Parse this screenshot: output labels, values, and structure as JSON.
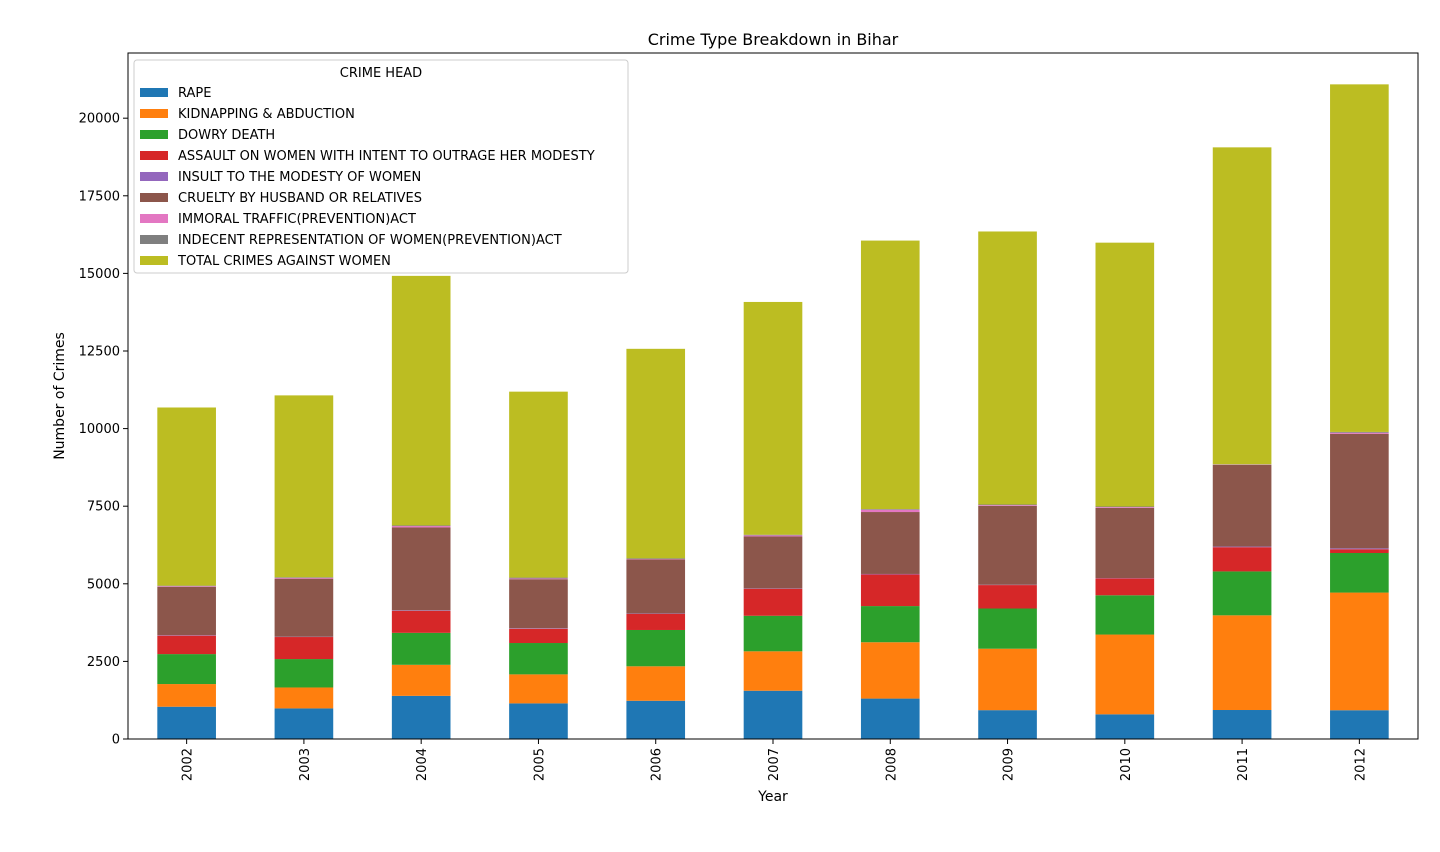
{
  "chart_data": {
    "type": "bar",
    "stacked": true,
    "title": "Crime Type Breakdown in Bihar",
    "xlabel": "Year",
    "ylabel": "Number of Crimes",
    "ylim": [
      0,
      22100
    ],
    "yticks": [
      0,
      2500,
      5000,
      7500,
      10000,
      12500,
      15000,
      17500,
      20000
    ],
    "grid": false,
    "legend": {
      "title": "CRIME HEAD",
      "placement": "top-left"
    },
    "categories": [
      "2002",
      "2003",
      "2004",
      "2005",
      "2006",
      "2007",
      "2008",
      "2009",
      "2010",
      "2011",
      "2012"
    ],
    "series": [
      {
        "name": "RAPE",
        "color": "#1f77b4",
        "values": [
          1040,
          985,
          1390,
          1147,
          1232,
          1555,
          1302,
          929,
          795,
          934,
          927
        ]
      },
      {
        "name": "KIDNAPPING & ABDUCTION",
        "color": "#ff7f0e",
        "values": [
          730,
          675,
          1000,
          935,
          1110,
          1270,
          1815,
          1980,
          2570,
          3050,
          3790
        ]
      },
      {
        "name": "DOWRY DEATH",
        "color": "#2ca02c",
        "values": [
          965,
          915,
          1030,
          1010,
          1170,
          1145,
          1165,
          1295,
          1265,
          1415,
          1275
        ]
      },
      {
        "name": "ASSAULT ON WOMEN WITH INTENT TO OUTRAGE HER MODESTY",
        "color": "#d62728",
        "values": [
          595,
          710,
          710,
          460,
          520,
          870,
          1020,
          755,
          545,
          780,
          120
        ]
      },
      {
        "name": "INSULT TO THE MODESTY OF WOMEN",
        "color": "#9467bd",
        "values": [
          15,
          10,
          15,
          15,
          10,
          10,
          15,
          10,
          10,
          20,
          30
        ]
      },
      {
        "name": "CRUELTY BY HUSBAND OR RELATIVES",
        "color": "#8c564b",
        "values": [
          1560,
          1870,
          2670,
          1580,
          1740,
          1675,
          1995,
          2540,
          2260,
          2630,
          3690
        ]
      },
      {
        "name": "IMMORAL TRAFFIC(PREVENTION)ACT",
        "color": "#e377c2",
        "values": [
          20,
          25,
          45,
          25,
          15,
          35,
          75,
          25,
          25,
          10,
          35
        ]
      },
      {
        "name": "INDECENT REPRESENTATION OF WOMEN(PREVENTION)ACT",
        "color": "#7f7f7f",
        "values": [
          15,
          20,
          20,
          28,
          23,
          20,
          20,
          20,
          20,
          10,
          25
        ]
      },
      {
        "name": "TOTAL CRIMES AGAINST WOMEN",
        "color": "#bcbd22",
        "values": [
          5740,
          5860,
          8040,
          5990,
          6750,
          7500,
          8650,
          8796,
          8500,
          10211,
          11198
        ]
      }
    ]
  }
}
